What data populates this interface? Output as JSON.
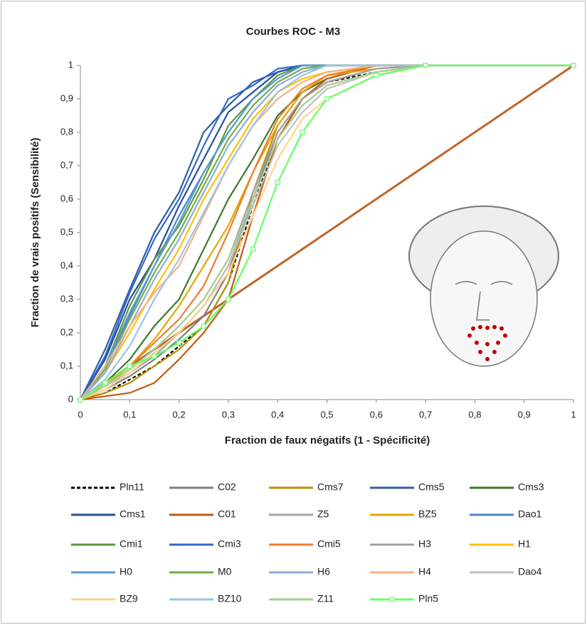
{
  "chart_data": {
    "type": "line",
    "title": "Courbes ROC - M3",
    "x_label": "Fraction de faux négatifs (1 - Spécificité)",
    "y_label": "Fraction de vrais positifs  (Sensibilité)",
    "x": [
      0,
      0.05,
      0.1,
      0.15,
      0.2,
      0.25,
      0.3,
      0.35,
      0.4,
      0.45,
      0.5,
      0.6,
      0.7,
      1
    ],
    "xlim": [
      0,
      1
    ],
    "ylim": [
      0,
      1
    ],
    "xticks": [
      0,
      {
        "value": 0.1,
        "label": "0,1"
      },
      {
        "value": 0.2,
        "label": "0,2"
      },
      {
        "value": 0.3,
        "label": "0,3"
      },
      {
        "value": 0.4,
        "label": "0,4"
      },
      {
        "value": 0.5,
        "label": "0,5"
      },
      {
        "value": 0.6,
        "label": "0,6"
      },
      {
        "value": 0.7,
        "label": "0,7"
      },
      {
        "value": 0.8,
        "label": "0,8"
      },
      {
        "value": 0.9,
        "label": "0,9"
      },
      1
    ],
    "yticks": [
      0,
      {
        "value": 0.1,
        "label": "0,1"
      },
      {
        "value": 0.2,
        "label": "0,2"
      },
      {
        "value": 0.3,
        "label": "0,3"
      },
      {
        "value": 0.4,
        "label": "0,4"
      },
      {
        "value": 0.5,
        "label": "0,5"
      },
      {
        "value": 0.6,
        "label": "0,6"
      },
      {
        "value": 0.7,
        "label": "0,7"
      },
      {
        "value": 0.8,
        "label": "0,8"
      },
      {
        "value": 0.9,
        "label": "0,9"
      },
      1
    ],
    "legend": "bottom",
    "diagonal": {
      "x": [
        0,
        1
      ],
      "values": [
        0,
        1
      ],
      "color": "#c0652a"
    },
    "series": [
      {
        "name": "Pln11",
        "color": "#000000",
        "dash": true,
        "values": [
          0,
          0.02,
          0.06,
          0.1,
          0.16,
          0.22,
          0.35,
          0.58,
          0.78,
          0.9,
          0.95,
          0.98,
          1,
          1
        ]
      },
      {
        "name": "C02",
        "color": "#7f7f7f",
        "values": [
          0,
          0.03,
          0.07,
          0.12,
          0.18,
          0.25,
          0.38,
          0.6,
          0.8,
          0.9,
          0.95,
          0.99,
          1,
          1
        ]
      },
      {
        "name": "Cms7",
        "color": "#bf8f00",
        "values": [
          0,
          0.02,
          0.05,
          0.1,
          0.15,
          0.22,
          0.35,
          0.62,
          0.82,
          0.92,
          0.97,
          1,
          1,
          1
        ]
      },
      {
        "name": "Cms5",
        "color": "#2e5e9e",
        "values": [
          0,
          0.15,
          0.33,
          0.5,
          0.62,
          0.8,
          0.88,
          0.95,
          0.98,
          1,
          1,
          1,
          1,
          1
        ]
      },
      {
        "name": "Cms3",
        "color": "#3b7a2a",
        "values": [
          0,
          0.05,
          0.12,
          0.22,
          0.3,
          0.45,
          0.6,
          0.72,
          0.85,
          0.92,
          0.96,
          1,
          1,
          1
        ]
      },
      {
        "name": "Cms1",
        "color": "#254f9a",
        "values": [
          0,
          0.12,
          0.3,
          0.42,
          0.58,
          0.72,
          0.86,
          0.92,
          0.98,
          1,
          1,
          1,
          1,
          1
        ]
      },
      {
        "name": "C01",
        "color": "#c55a11",
        "values": [
          0,
          0.01,
          0.02,
          0.05,
          0.12,
          0.2,
          0.3,
          0.55,
          0.78,
          0.9,
          0.96,
          1,
          1,
          1
        ]
      },
      {
        "name": "Z5",
        "color": "#a5a5a5",
        "values": [
          0,
          0.03,
          0.08,
          0.13,
          0.2,
          0.28,
          0.4,
          0.6,
          0.78,
          0.88,
          0.94,
          0.98,
          1,
          1
        ]
      },
      {
        "name": "BZ5",
        "color": "#e0a800",
        "values": [
          0,
          0.04,
          0.1,
          0.18,
          0.28,
          0.4,
          0.52,
          0.68,
          0.82,
          0.92,
          0.97,
          0.99,
          1,
          1
        ]
      },
      {
        "name": "Dao1",
        "color": "#4a86c8",
        "values": [
          0,
          0.1,
          0.25,
          0.4,
          0.55,
          0.68,
          0.8,
          0.9,
          0.96,
          1,
          1,
          1,
          1,
          1
        ]
      },
      {
        "name": "Cmi1",
        "color": "#5a9a3a",
        "values": [
          0,
          0.1,
          0.28,
          0.42,
          0.52,
          0.66,
          0.82,
          0.9,
          0.97,
          1,
          1,
          1,
          1,
          1
        ]
      },
      {
        "name": "Cmi3",
        "color": "#3366cc",
        "values": [
          0,
          0.13,
          0.32,
          0.48,
          0.6,
          0.76,
          0.9,
          0.94,
          0.99,
          1,
          1,
          1,
          1,
          1
        ]
      },
      {
        "name": "Cmi5",
        "color": "#ed7d31",
        "values": [
          0,
          0.05,
          0.1,
          0.17,
          0.24,
          0.34,
          0.5,
          0.68,
          0.84,
          0.93,
          0.97,
          1,
          1,
          1
        ]
      },
      {
        "name": "H3",
        "color": "#a0a0a0",
        "values": [
          0,
          0.04,
          0.09,
          0.15,
          0.22,
          0.3,
          0.42,
          0.62,
          0.8,
          0.9,
          0.95,
          0.99,
          1,
          1
        ]
      },
      {
        "name": "H1",
        "color": "#ffc000",
        "values": [
          0,
          0.08,
          0.2,
          0.33,
          0.45,
          0.6,
          0.72,
          0.84,
          0.92,
          0.96,
          0.98,
          1,
          1,
          1
        ]
      },
      {
        "name": "H0",
        "color": "#5b9bd5",
        "values": [
          0,
          0.1,
          0.26,
          0.4,
          0.53,
          0.68,
          0.8,
          0.9,
          0.96,
          1,
          1,
          1,
          1,
          1
        ]
      },
      {
        "name": "M0",
        "color": "#70ad47",
        "values": [
          0,
          0.09,
          0.24,
          0.38,
          0.5,
          0.64,
          0.78,
          0.88,
          0.95,
          0.99,
          1,
          1,
          1,
          1
        ]
      },
      {
        "name": "H6",
        "color": "#8faadc",
        "values": [
          0,
          0.08,
          0.22,
          0.36,
          0.48,
          0.62,
          0.76,
          0.86,
          0.94,
          0.98,
          1,
          1,
          1,
          1
        ]
      },
      {
        "name": "H4",
        "color": "#f4b183",
        "values": [
          0,
          0.1,
          0.22,
          0.32,
          0.4,
          0.55,
          0.7,
          0.82,
          0.9,
          0.95,
          0.98,
          1,
          1,
          1
        ]
      },
      {
        "name": "Dao4",
        "color": "#c0c0c0",
        "values": [
          0,
          0.04,
          0.08,
          0.14,
          0.2,
          0.28,
          0.4,
          0.58,
          0.76,
          0.86,
          0.93,
          0.98,
          1,
          1
        ]
      },
      {
        "name": "BZ9",
        "color": "#ffd28a",
        "values": [
          0,
          0.03,
          0.08,
          0.14,
          0.2,
          0.28,
          0.38,
          0.55,
          0.72,
          0.84,
          0.9,
          0.97,
          1,
          1
        ]
      },
      {
        "name": "BZ10",
        "color": "#9dc3e6",
        "values": [
          0,
          0.06,
          0.16,
          0.3,
          0.42,
          0.56,
          0.7,
          0.82,
          0.92,
          0.97,
          1,
          1,
          1,
          1
        ]
      },
      {
        "name": "Z11",
        "color": "#a9d18e",
        "values": [
          0,
          0.04,
          0.09,
          0.15,
          0.22,
          0.3,
          0.42,
          0.6,
          0.78,
          0.88,
          0.94,
          0.98,
          1,
          1
        ]
      },
      {
        "name": "Pln5",
        "color": "#66ff66",
        "marker": "square",
        "values": [
          0,
          0.05,
          0.1,
          0.13,
          0.17,
          0.22,
          0.3,
          0.45,
          0.65,
          0.8,
          0.9,
          0.97,
          1,
          1
        ]
      }
    ]
  }
}
